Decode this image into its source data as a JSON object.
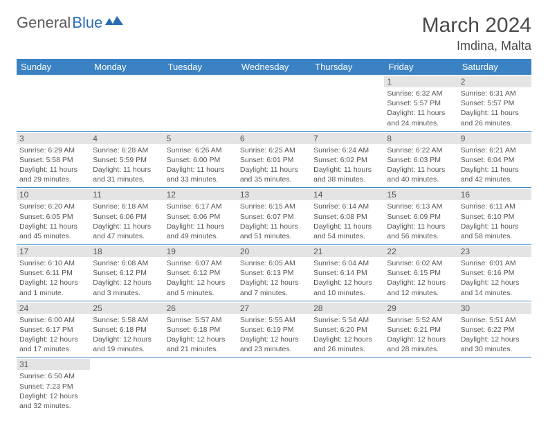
{
  "logo": {
    "part1": "General",
    "part2": "Blue"
  },
  "title": "March 2024",
  "location": "Imdina, Malta",
  "colors": {
    "header_bg": "#3b82c4",
    "header_text": "#ffffff",
    "daynum_bg": "#e4e4e4",
    "text": "#555555",
    "logo_gray": "#5a5a5a",
    "logo_blue": "#2a6cb5",
    "border": "#3b82c4"
  },
  "weekdays": [
    "Sunday",
    "Monday",
    "Tuesday",
    "Wednesday",
    "Thursday",
    "Friday",
    "Saturday"
  ],
  "weeks": [
    [
      null,
      null,
      null,
      null,
      null,
      {
        "n": "1",
        "sr": "Sunrise: 6:32 AM",
        "ss": "Sunset: 5:57 PM",
        "d1": "Daylight: 11 hours",
        "d2": "and 24 minutes."
      },
      {
        "n": "2",
        "sr": "Sunrise: 6:31 AM",
        "ss": "Sunset: 5:57 PM",
        "d1": "Daylight: 11 hours",
        "d2": "and 26 minutes."
      }
    ],
    [
      {
        "n": "3",
        "sr": "Sunrise: 6:29 AM",
        "ss": "Sunset: 5:58 PM",
        "d1": "Daylight: 11 hours",
        "d2": "and 29 minutes."
      },
      {
        "n": "4",
        "sr": "Sunrise: 6:28 AM",
        "ss": "Sunset: 5:59 PM",
        "d1": "Daylight: 11 hours",
        "d2": "and 31 minutes."
      },
      {
        "n": "5",
        "sr": "Sunrise: 6:26 AM",
        "ss": "Sunset: 6:00 PM",
        "d1": "Daylight: 11 hours",
        "d2": "and 33 minutes."
      },
      {
        "n": "6",
        "sr": "Sunrise: 6:25 AM",
        "ss": "Sunset: 6:01 PM",
        "d1": "Daylight: 11 hours",
        "d2": "and 35 minutes."
      },
      {
        "n": "7",
        "sr": "Sunrise: 6:24 AM",
        "ss": "Sunset: 6:02 PM",
        "d1": "Daylight: 11 hours",
        "d2": "and 38 minutes."
      },
      {
        "n": "8",
        "sr": "Sunrise: 6:22 AM",
        "ss": "Sunset: 6:03 PM",
        "d1": "Daylight: 11 hours",
        "d2": "and 40 minutes."
      },
      {
        "n": "9",
        "sr": "Sunrise: 6:21 AM",
        "ss": "Sunset: 6:04 PM",
        "d1": "Daylight: 11 hours",
        "d2": "and 42 minutes."
      }
    ],
    [
      {
        "n": "10",
        "sr": "Sunrise: 6:20 AM",
        "ss": "Sunset: 6:05 PM",
        "d1": "Daylight: 11 hours",
        "d2": "and 45 minutes."
      },
      {
        "n": "11",
        "sr": "Sunrise: 6:18 AM",
        "ss": "Sunset: 6:06 PM",
        "d1": "Daylight: 11 hours",
        "d2": "and 47 minutes."
      },
      {
        "n": "12",
        "sr": "Sunrise: 6:17 AM",
        "ss": "Sunset: 6:06 PM",
        "d1": "Daylight: 11 hours",
        "d2": "and 49 minutes."
      },
      {
        "n": "13",
        "sr": "Sunrise: 6:15 AM",
        "ss": "Sunset: 6:07 PM",
        "d1": "Daylight: 11 hours",
        "d2": "and 51 minutes."
      },
      {
        "n": "14",
        "sr": "Sunrise: 6:14 AM",
        "ss": "Sunset: 6:08 PM",
        "d1": "Daylight: 11 hours",
        "d2": "and 54 minutes."
      },
      {
        "n": "15",
        "sr": "Sunrise: 6:13 AM",
        "ss": "Sunset: 6:09 PM",
        "d1": "Daylight: 11 hours",
        "d2": "and 56 minutes."
      },
      {
        "n": "16",
        "sr": "Sunrise: 6:11 AM",
        "ss": "Sunset: 6:10 PM",
        "d1": "Daylight: 11 hours",
        "d2": "and 58 minutes."
      }
    ],
    [
      {
        "n": "17",
        "sr": "Sunrise: 6:10 AM",
        "ss": "Sunset: 6:11 PM",
        "d1": "Daylight: 12 hours",
        "d2": "and 1 minute."
      },
      {
        "n": "18",
        "sr": "Sunrise: 6:08 AM",
        "ss": "Sunset: 6:12 PM",
        "d1": "Daylight: 12 hours",
        "d2": "and 3 minutes."
      },
      {
        "n": "19",
        "sr": "Sunrise: 6:07 AM",
        "ss": "Sunset: 6:12 PM",
        "d1": "Daylight: 12 hours",
        "d2": "and 5 minutes."
      },
      {
        "n": "20",
        "sr": "Sunrise: 6:05 AM",
        "ss": "Sunset: 6:13 PM",
        "d1": "Daylight: 12 hours",
        "d2": "and 7 minutes."
      },
      {
        "n": "21",
        "sr": "Sunrise: 6:04 AM",
        "ss": "Sunset: 6:14 PM",
        "d1": "Daylight: 12 hours",
        "d2": "and 10 minutes."
      },
      {
        "n": "22",
        "sr": "Sunrise: 6:02 AM",
        "ss": "Sunset: 6:15 PM",
        "d1": "Daylight: 12 hours",
        "d2": "and 12 minutes."
      },
      {
        "n": "23",
        "sr": "Sunrise: 6:01 AM",
        "ss": "Sunset: 6:16 PM",
        "d1": "Daylight: 12 hours",
        "d2": "and 14 minutes."
      }
    ],
    [
      {
        "n": "24",
        "sr": "Sunrise: 6:00 AM",
        "ss": "Sunset: 6:17 PM",
        "d1": "Daylight: 12 hours",
        "d2": "and 17 minutes."
      },
      {
        "n": "25",
        "sr": "Sunrise: 5:58 AM",
        "ss": "Sunset: 6:18 PM",
        "d1": "Daylight: 12 hours",
        "d2": "and 19 minutes."
      },
      {
        "n": "26",
        "sr": "Sunrise: 5:57 AM",
        "ss": "Sunset: 6:18 PM",
        "d1": "Daylight: 12 hours",
        "d2": "and 21 minutes."
      },
      {
        "n": "27",
        "sr": "Sunrise: 5:55 AM",
        "ss": "Sunset: 6:19 PM",
        "d1": "Daylight: 12 hours",
        "d2": "and 23 minutes."
      },
      {
        "n": "28",
        "sr": "Sunrise: 5:54 AM",
        "ss": "Sunset: 6:20 PM",
        "d1": "Daylight: 12 hours",
        "d2": "and 26 minutes."
      },
      {
        "n": "29",
        "sr": "Sunrise: 5:52 AM",
        "ss": "Sunset: 6:21 PM",
        "d1": "Daylight: 12 hours",
        "d2": "and 28 minutes."
      },
      {
        "n": "30",
        "sr": "Sunrise: 5:51 AM",
        "ss": "Sunset: 6:22 PM",
        "d1": "Daylight: 12 hours",
        "d2": "and 30 minutes."
      }
    ],
    [
      {
        "n": "31",
        "sr": "Sunrise: 6:50 AM",
        "ss": "Sunset: 7:23 PM",
        "d1": "Daylight: 12 hours",
        "d2": "and 32 minutes."
      },
      null,
      null,
      null,
      null,
      null,
      null
    ]
  ]
}
